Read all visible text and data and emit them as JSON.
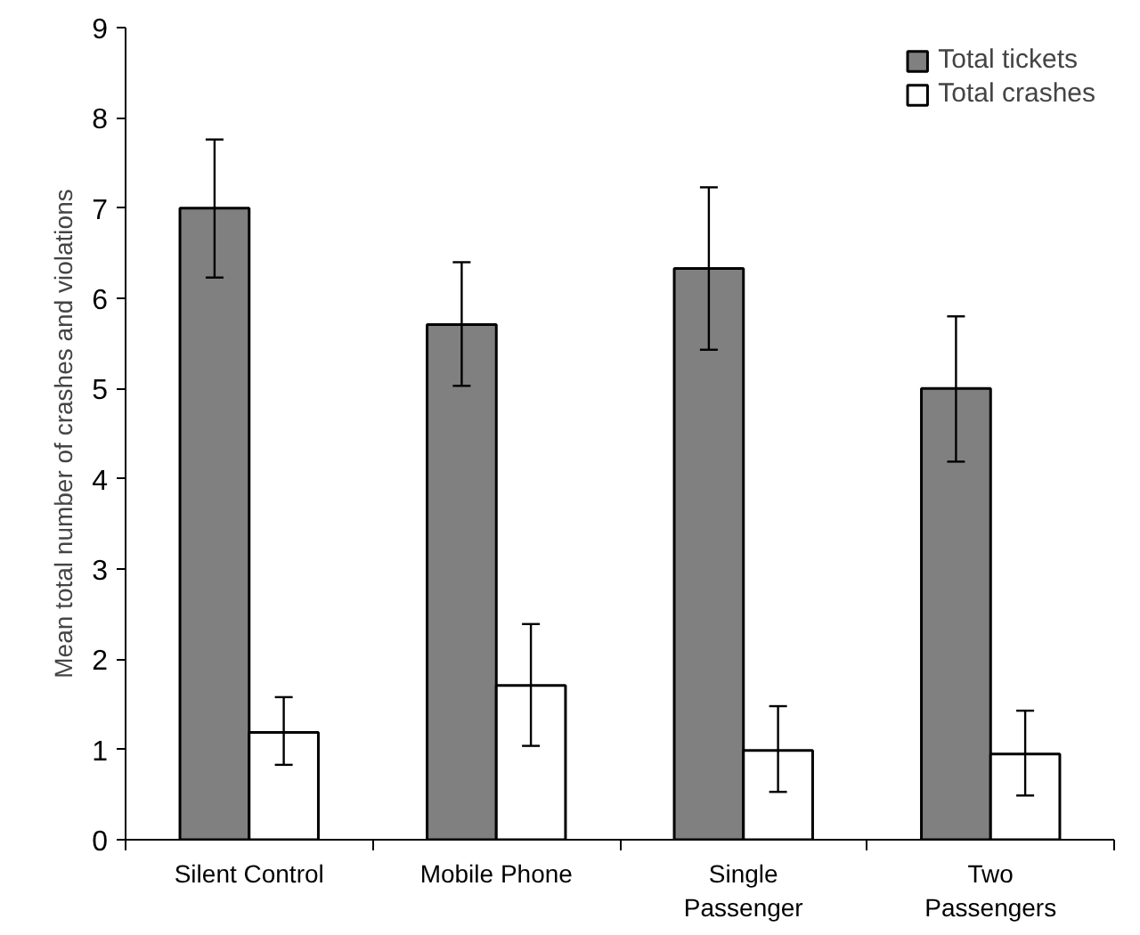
{
  "chart_data": {
    "type": "bar",
    "ylabel": "Mean total number of crashes and violations",
    "categories": [
      "Silent Control",
      "Mobile Phone",
      "Single\nPassenger",
      "Two\nPassengers"
    ],
    "series": [
      {
        "name": "Total tickets",
        "color": "#808080",
        "values": [
          7.0,
          5.71,
          6.33,
          5.0
        ],
        "errors": [
          [
            6.23,
            7.76
          ],
          [
            5.03,
            6.4
          ],
          [
            5.43,
            7.23
          ],
          [
            4.19,
            5.8
          ]
        ]
      },
      {
        "name": "Total crashes",
        "color": "#ffffff",
        "values": [
          1.19,
          1.71,
          0.99,
          0.95
        ],
        "errors": [
          [
            0.83,
            1.58
          ],
          [
            1.04,
            2.39
          ],
          [
            0.53,
            1.48
          ],
          [
            0.49,
            1.43
          ]
        ]
      }
    ],
    "ylim": [
      0,
      9
    ],
    "yticks": [
      0,
      1,
      2,
      3,
      4,
      5,
      6,
      7,
      8,
      9
    ],
    "grid": false,
    "legend": "top right"
  }
}
